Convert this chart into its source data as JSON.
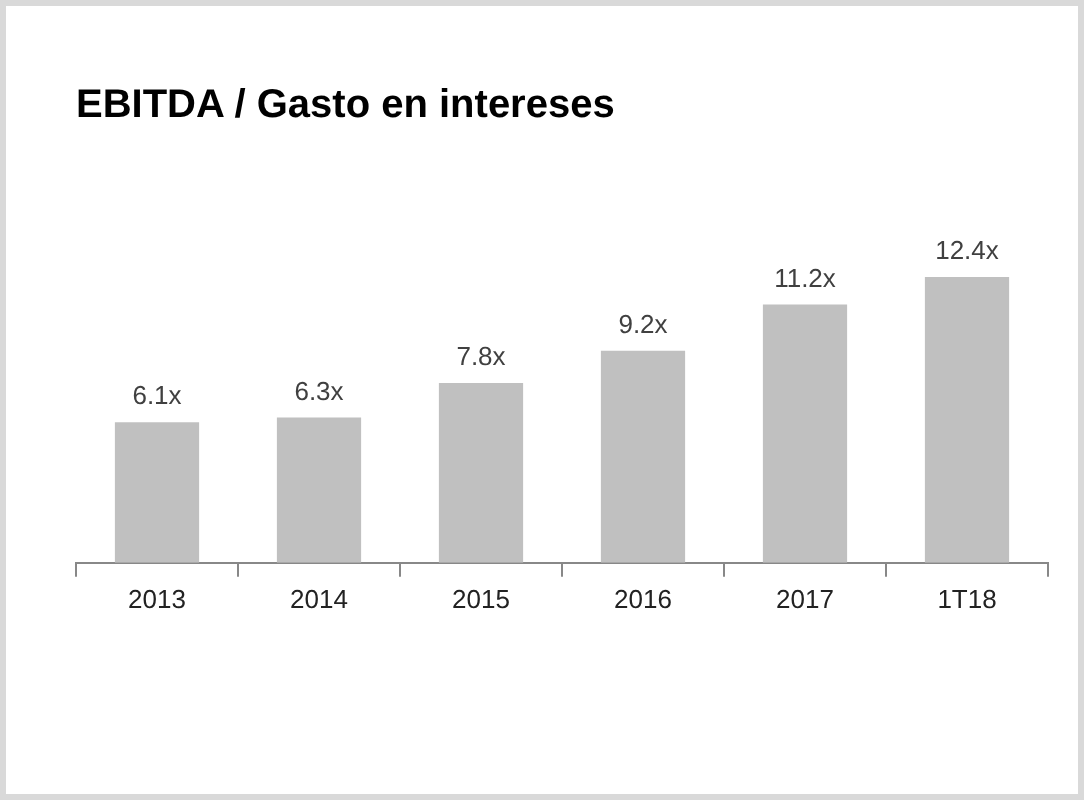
{
  "chart_data": {
    "type": "bar",
    "title": "EBITDA / Gasto en intereses",
    "categories": [
      "2013",
      "2014",
      "2015",
      "2016",
      "2017",
      "1T18"
    ],
    "values": [
      6.1,
      6.3,
      7.8,
      9.2,
      11.2,
      12.4
    ],
    "value_labels": [
      "6.1x",
      "6.3x",
      "7.8x",
      "9.2x",
      "11.2x",
      "12.4x"
    ],
    "color": "#c0c0c0",
    "grid": false,
    "legend": false
  }
}
